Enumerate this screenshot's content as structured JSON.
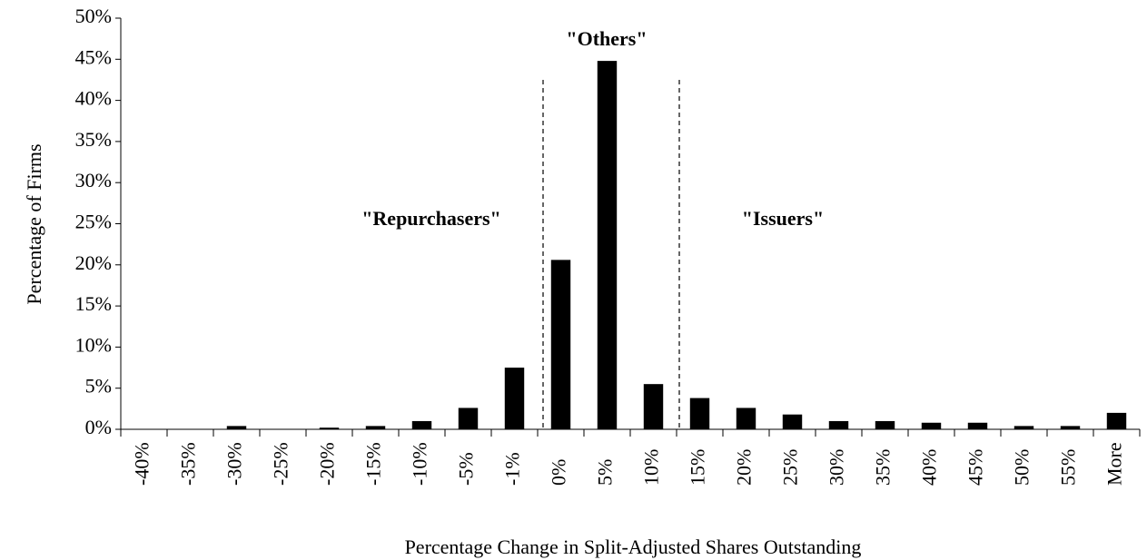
{
  "chart_data": {
    "type": "bar",
    "categories": [
      "-40%",
      "-35%",
      "-30%",
      "-25%",
      "-20%",
      "-15%",
      "-10%",
      "-5%",
      "-1%",
      "0%",
      "5%",
      "10%",
      "15%",
      "20%",
      "25%",
      "30%",
      "35%",
      "40%",
      "45%",
      "50%",
      "55%",
      "More"
    ],
    "values": [
      0,
      0,
      0.4,
      0,
      0.2,
      0.4,
      1.0,
      2.6,
      7.5,
      20.6,
      44.8,
      5.5,
      3.8,
      2.6,
      1.8,
      1.0,
      1.0,
      0.8,
      0.8,
      0.4,
      0.4,
      2.0
    ],
    "color": "#000000",
    "ylim": [
      0,
      50
    ],
    "yticks": [
      {
        "value": 0,
        "label": "0%"
      },
      {
        "value": 5,
        "label": "5%"
      },
      {
        "value": 10,
        "label": "10%"
      },
      {
        "value": 15,
        "label": "15%"
      },
      {
        "value": 20,
        "label": "20%"
      },
      {
        "value": 25,
        "label": "25%"
      },
      {
        "value": 30,
        "label": "30%"
      },
      {
        "value": 35,
        "label": "35%"
      },
      {
        "value": 40,
        "label": "40%"
      },
      {
        "value": 45,
        "label": "45%"
      },
      {
        "value": 50,
        "label": "50%"
      }
    ],
    "x_label": "Percentage Change in Split-Adjusted Shares Outstanding",
    "y_label": "Percentage of Firms",
    "annotations": [
      "\"Repurchasers\"",
      "\"Others\"",
      "\"Issuers\""
    ]
  }
}
